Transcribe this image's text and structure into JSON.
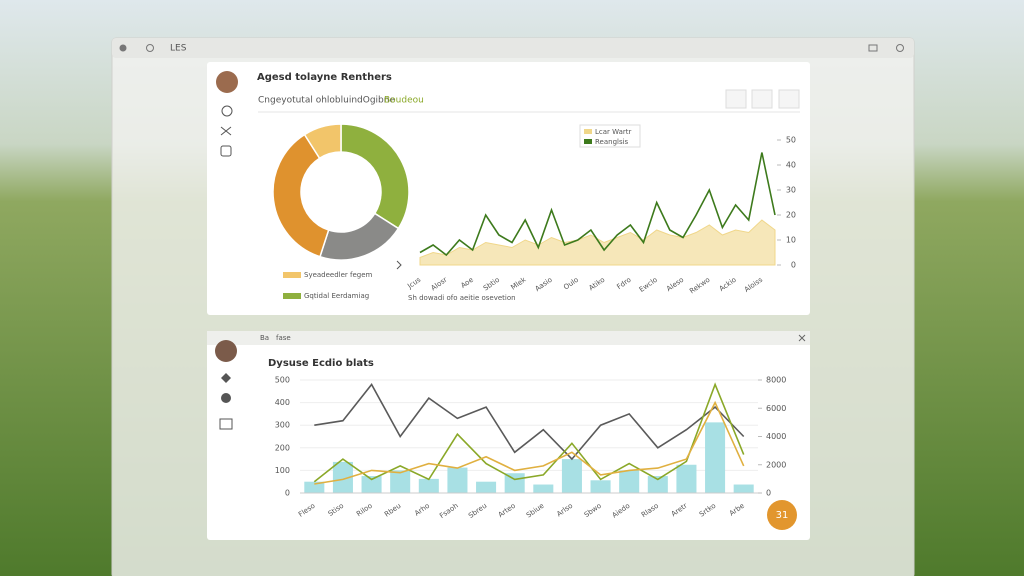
{
  "window": {
    "toolbar": "LES"
  },
  "panel1": {
    "title": "Agesd tolayne Renthers",
    "subtitle": "Cngeyotutal ohlobluindOgibne",
    "subtitle_highlight": "Boudeou"
  },
  "panel2": {
    "tab1": "Ba",
    "tab2": "fase",
    "title": "Dysuse Ecdio blats",
    "button": "31"
  },
  "chart_data": [
    {
      "type": "pie",
      "categories": [
        "Gqtidal Eerdamiag",
        null,
        null,
        "Syeadeedler fegem"
      ],
      "values": [
        34,
        21,
        36,
        9
      ],
      "colors": [
        "#8fb03e",
        "#8a8a88",
        "#df922e",
        "#f2c56a"
      ],
      "caption": "Sh dowadi ofo aeitie osevetion"
    },
    {
      "type": "line",
      "categories": [
        "Jcus",
        null,
        "Alosr",
        null,
        "Aoe",
        null,
        "Sbtio",
        null,
        "Mlek",
        null,
        "Aasio",
        null,
        "Oulo",
        null,
        "Atiko",
        null,
        "Fdro",
        null,
        "Ewclo",
        null,
        "Aleso",
        null,
        "Rekwo",
        null,
        "Ackio",
        null,
        "Aloiss",
        null
      ],
      "series": [
        {
          "name": "Lcar Wartr",
          "color": "#f0d78a",
          "fill": true,
          "values": [
            3,
            5,
            4,
            7,
            6,
            9,
            8,
            7,
            10,
            8,
            11,
            9,
            10,
            12,
            9,
            11,
            13,
            10,
            14,
            12,
            11,
            13,
            16,
            12,
            14,
            13,
            18,
            14
          ]
        },
        {
          "name": "Reanglsis",
          "color": "#3d7a1c",
          "fill": false,
          "values": [
            5,
            8,
            4,
            10,
            6,
            20,
            12,
            9,
            18,
            7,
            22,
            8,
            10,
            14,
            6,
            12,
            16,
            9,
            25,
            14,
            11,
            20,
            30,
            15,
            24,
            18,
            45,
            20
          ]
        }
      ],
      "ylim": [
        0,
        50
      ],
      "yticks": [
        0,
        10,
        20,
        30,
        40,
        50
      ]
    },
    {
      "type": "combo",
      "categories": [
        "Fleso",
        "Stiso",
        "Riloo",
        "Rbeu",
        "Arho",
        "Fsaoh",
        "Sbreu",
        "Arteo",
        "Sbiue",
        "Arlso",
        "Sbwo",
        "Aiedo",
        "Rlaso",
        "Aretr",
        "Srtko",
        "Arbe"
      ],
      "series": [
        {
          "kind": "bar",
          "axis": "y2",
          "color": "#a8e0e4",
          "values": [
            800,
            2200,
            1200,
            1600,
            1000,
            1800,
            800,
            1400,
            600,
            2400,
            900,
            1600,
            1200,
            2000,
            5000,
            600
          ]
        },
        {
          "kind": "line",
          "color": "#5a5a5a",
          "values": [
            300,
            320,
            480,
            250,
            420,
            330,
            380,
            180,
            280,
            150,
            300,
            350,
            200,
            280,
            380,
            250
          ]
        },
        {
          "kind": "line",
          "color": "#8aa828",
          "values": [
            50,
            150,
            60,
            120,
            60,
            260,
            130,
            60,
            80,
            220,
            60,
            130,
            60,
            140,
            480,
            170
          ]
        },
        {
          "kind": "line",
          "color": "#e0b040",
          "values": [
            40,
            60,
            100,
            90,
            130,
            110,
            160,
            100,
            120,
            180,
            80,
            100,
            110,
            150,
            400,
            120
          ]
        }
      ],
      "ylim": [
        0,
        500
      ],
      "yticks": [
        0,
        100,
        200,
        300,
        400,
        500
      ],
      "y2lim": [
        0,
        8000
      ],
      "y2ticks": [
        0,
        2000,
        4000,
        6000,
        8000
      ]
    }
  ]
}
